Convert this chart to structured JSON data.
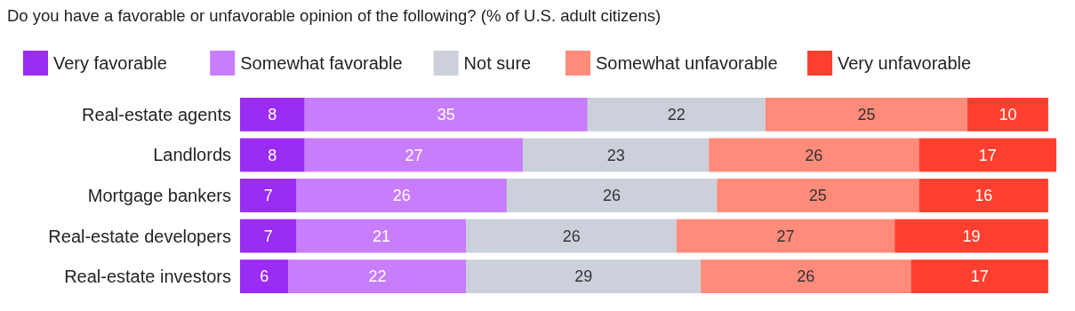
{
  "chart_data": {
    "type": "bar",
    "orientation": "horizontal",
    "stacked": true,
    "data_labels": true,
    "legend": "top",
    "grid": false,
    "title": "Do you have a favorable or unfavorable opinion of the following? (% of U.S. adult citizens)",
    "categories": [
      "Real-estate agents",
      "Landlords",
      "Mortgage bankers",
      "Real-estate developers",
      "Real-estate investors"
    ],
    "series": [
      {
        "name": "Very favorable",
        "color": "#9a2cf3",
        "values": [
          8,
          8,
          7,
          7,
          6
        ]
      },
      {
        "name": "Somewhat favorable",
        "color": "#c77dfc",
        "values": [
          35,
          27,
          26,
          21,
          22
        ]
      },
      {
        "name": "Not sure",
        "color": "#ccd0da",
        "values": [
          22,
          23,
          26,
          26,
          29
        ]
      },
      {
        "name": "Somewhat unfavorable",
        "color": "#ff8b7b",
        "values": [
          25,
          26,
          25,
          27,
          26
        ]
      },
      {
        "name": "Very unfavorable",
        "color": "#ff3f2f",
        "values": [
          10,
          17,
          16,
          19,
          17
        ]
      }
    ]
  }
}
